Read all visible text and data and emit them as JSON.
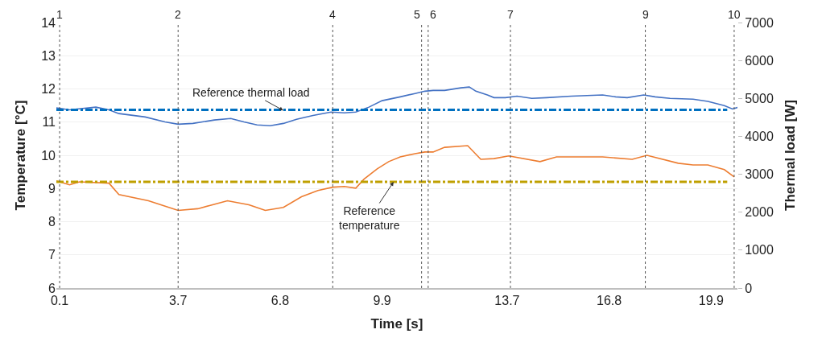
{
  "chart_data": {
    "type": "line",
    "xlabel": "Time [s]",
    "ylabel": "Temperature [°C]",
    "y2label": "Thermal load [W]",
    "xlim": [
      0,
      20.7
    ],
    "xticks": [
      0.1,
      3.7,
      6.8,
      9.9,
      13.7,
      16.8,
      19.9
    ],
    "ylim": [
      6,
      14
    ],
    "yticks": [
      6,
      7,
      8,
      9,
      10,
      11,
      12,
      13,
      14
    ],
    "y2lim": [
      0,
      7000
    ],
    "y2ticks": [
      0,
      1000,
      2000,
      3000,
      4000,
      5000,
      6000,
      7000
    ],
    "grid": "y",
    "marker": "none",
    "line_style": "solid",
    "series": [
      {
        "color": "#4472c4",
        "axis": "y2",
        "x": [
          0.0,
          0.4,
          1.2,
          1.6,
          1.9,
          2.7,
          3.3,
          3.7,
          4.15,
          4.8,
          5.3,
          5.7,
          6.1,
          6.5,
          6.9,
          7.3,
          7.8,
          8.35,
          8.75,
          9.1,
          9.5,
          9.9,
          10.45,
          10.9,
          11.2,
          11.45,
          11.8,
          12.3,
          12.55,
          12.75,
          13.1,
          13.3,
          13.65,
          14.0,
          14.45,
          14.9,
          15.65,
          16.6,
          17.0,
          17.35,
          17.85,
          18.2,
          18.65,
          19.35,
          19.8,
          20.3,
          20.55,
          20.7
        ],
        "values": [
          4750,
          4700,
          4770,
          4700,
          4600,
          4510,
          4380,
          4320,
          4340,
          4430,
          4470,
          4380,
          4300,
          4280,
          4340,
          4450,
          4550,
          4640,
          4620,
          4640,
          4770,
          4940,
          5040,
          5130,
          5190,
          5210,
          5210,
          5280,
          5300,
          5190,
          5090,
          5020,
          5020,
          5060,
          5000,
          5020,
          5060,
          5090,
          5040,
          5020,
          5090,
          5040,
          5000,
          4980,
          4920,
          4810,
          4720,
          4760
        ]
      },
      {
        "color": "#ed7d31",
        "axis": "y",
        "x": [
          0.0,
          0.4,
          0.7,
          1.6,
          1.9,
          2.8,
          3.7,
          4.3,
          5.2,
          5.85,
          6.35,
          6.9,
          7.45,
          7.95,
          8.4,
          8.75,
          9.1,
          9.35,
          9.75,
          10.1,
          10.45,
          10.9,
          11.2,
          11.45,
          11.8,
          12.5,
          12.9,
          13.3,
          13.75,
          14.7,
          15.2,
          16.6,
          17.5,
          17.95,
          18.9,
          19.35,
          19.8,
          20.3,
          20.6
        ],
        "values": [
          9.23,
          9.11,
          9.2,
          9.16,
          8.82,
          8.63,
          8.34,
          8.39,
          8.63,
          8.51,
          8.34,
          8.43,
          8.75,
          8.94,
          9.04,
          9.06,
          9.01,
          9.28,
          9.59,
          9.81,
          9.95,
          10.05,
          10.1,
          10.1,
          10.24,
          10.29,
          9.88,
          9.9,
          9.98,
          9.81,
          9.95,
          9.95,
          9.88,
          10.0,
          9.76,
          9.71,
          9.71,
          9.57,
          9.35
        ]
      }
    ],
    "ref_lines": [
      {
        "axis": "y",
        "value": 9.2,
        "color": "#bfa000",
        "line_style": "dashdot"
      },
      {
        "axis": "y2",
        "value": 4700,
        "color": "#0070c0",
        "line_style": "dashdot"
      },
      {
        "axis": "x",
        "value": 0.1,
        "color": "#555555",
        "line_style": "dotted"
      },
      {
        "axis": "x",
        "value": 3.7,
        "color": "#555555",
        "line_style": "dotted"
      },
      {
        "axis": "x",
        "value": 8.4,
        "color": "#555555",
        "line_style": "dotted"
      },
      {
        "axis": "x",
        "value": 11.1,
        "color": "#555555",
        "line_style": "dotted"
      },
      {
        "axis": "x",
        "value": 11.3,
        "color": "#555555",
        "line_style": "dotted"
      },
      {
        "axis": "x",
        "value": 13.8,
        "color": "#555555",
        "line_style": "dotted"
      },
      {
        "axis": "x",
        "value": 17.9,
        "color": "#555555",
        "line_style": "dotted"
      },
      {
        "axis": "x",
        "value": 20.6,
        "color": "#555555",
        "line_style": "dotted"
      }
    ],
    "annotations": [
      {
        "text": "1",
        "x": 0.1,
        "y": 14
      },
      {
        "text": "2",
        "x": 3.7,
        "y": 14
      },
      {
        "text": "4",
        "x": 8.4,
        "y": 14
      },
      {
        "text": "5",
        "x": 11.1,
        "y": 14
      },
      {
        "text": "6",
        "x": 11.3,
        "y": 14
      },
      {
        "text": "7",
        "x": 13.8,
        "y": 14
      },
      {
        "text": "9",
        "x": 17.9,
        "y": 14
      },
      {
        "text": "10",
        "x": 20.6,
        "y": 14
      },
      {
        "text": "Reference thermal load",
        "x": 6.9,
        "y": 11.35
      },
      {
        "text": "Reference\ntemperature",
        "x": 10.25,
        "y": 9.2
      }
    ]
  }
}
